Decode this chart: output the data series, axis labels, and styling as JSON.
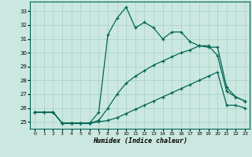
{
  "xlabel": "Humidex (Indice chaleur)",
  "bg_color": "#cbe8e0",
  "grid_color": "#a8cec5",
  "line_color": "#006655",
  "xlim": [
    -0.5,
    23.5
  ],
  "ylim": [
    24.5,
    33.7
  ],
  "xticks": [
    0,
    1,
    2,
    3,
    4,
    5,
    6,
    7,
    8,
    9,
    10,
    11,
    12,
    13,
    14,
    15,
    16,
    17,
    18,
    19,
    20,
    21,
    22,
    23
  ],
  "yticks": [
    25,
    26,
    27,
    28,
    29,
    30,
    31,
    32,
    33
  ],
  "s1_x": [
    0,
    1,
    2,
    3,
    4,
    5,
    6,
    7,
    8,
    9,
    10,
    11,
    12,
    13,
    14,
    15,
    16,
    17,
    18,
    19,
    20,
    21,
    22,
    23
  ],
  "s1_y": [
    25.7,
    25.7,
    25.7,
    24.9,
    24.9,
    24.9,
    24.9,
    25.0,
    25.1,
    25.3,
    25.6,
    25.9,
    26.2,
    26.5,
    26.8,
    27.1,
    27.4,
    27.7,
    28.0,
    28.3,
    28.6,
    26.2,
    26.2,
    26.0
  ],
  "s2_x": [
    0,
    1,
    2,
    3,
    4,
    5,
    6,
    7,
    8,
    9,
    10,
    11,
    12,
    13,
    14,
    15,
    16,
    17,
    18,
    19,
    20,
    21,
    22,
    23
  ],
  "s2_y": [
    25.7,
    25.7,
    25.7,
    24.9,
    24.9,
    24.9,
    24.9,
    25.1,
    26.0,
    27.0,
    27.8,
    28.3,
    28.7,
    29.1,
    29.4,
    29.7,
    30.0,
    30.2,
    30.5,
    30.5,
    29.8,
    27.2,
    26.8,
    26.5
  ],
  "s3_x": [
    0,
    1,
    2,
    3,
    4,
    5,
    6,
    7,
    8,
    9,
    10,
    11,
    12,
    13,
    14,
    15,
    16,
    17,
    18,
    19,
    20,
    21,
    22,
    23
  ],
  "s3_y": [
    25.7,
    25.7,
    25.7,
    24.9,
    24.9,
    24.9,
    24.9,
    25.7,
    31.3,
    32.5,
    33.3,
    31.8,
    32.2,
    31.8,
    31.0,
    31.5,
    31.5,
    30.8,
    30.5,
    30.4,
    30.4,
    27.5,
    26.8,
    26.5
  ]
}
